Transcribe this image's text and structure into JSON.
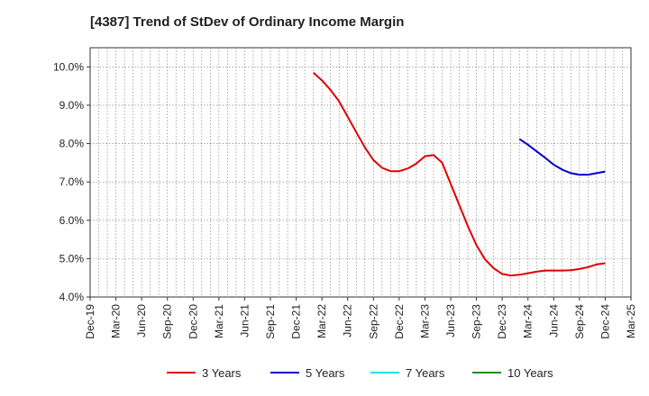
{
  "chart_data": {
    "type": "line",
    "title": "[4387]  Trend of StDev of Ordinary Income Margin",
    "x_labels": [
      "Dec-19",
      "Mar-20",
      "Jun-20",
      "Sep-20",
      "Dec-20",
      "Mar-21",
      "Jun-21",
      "Sep-21",
      "Dec-21",
      "Mar-22",
      "Jun-22",
      "Sep-22",
      "Dec-22",
      "Mar-23",
      "Jun-23",
      "Sep-23",
      "Dec-23",
      "Mar-24",
      "Jun-24",
      "Sep-24",
      "Dec-24",
      "Mar-25"
    ],
    "y_ticks": [
      "4.0%",
      "5.0%",
      "6.0%",
      "7.0%",
      "8.0%",
      "9.0%",
      "10.0%"
    ],
    "ylim": [
      4.0,
      10.5
    ],
    "grid": true,
    "legend_position": "bottom",
    "series": [
      {
        "name": "3 Years",
        "color": "#e00000",
        "points": [
          [
            "Feb-22",
            9.85
          ],
          [
            "Mar-22",
            9.65
          ],
          [
            "Apr-22",
            9.4
          ],
          [
            "May-22",
            9.1
          ],
          [
            "Jun-22",
            8.7
          ],
          [
            "Jul-22",
            8.3
          ],
          [
            "Aug-22",
            7.9
          ],
          [
            "Sep-22",
            7.57
          ],
          [
            "Oct-22",
            7.37
          ],
          [
            "Nov-22",
            7.28
          ],
          [
            "Dec-22",
            7.28
          ],
          [
            "Jan-23",
            7.35
          ],
          [
            "Feb-23",
            7.48
          ],
          [
            "Mar-23",
            7.67
          ],
          [
            "Apr-23",
            7.7
          ],
          [
            "May-23",
            7.5
          ],
          [
            "Jun-23",
            6.95
          ],
          [
            "Jul-23",
            6.4
          ],
          [
            "Aug-23",
            5.85
          ],
          [
            "Sep-23",
            5.35
          ],
          [
            "Oct-23",
            4.98
          ],
          [
            "Nov-23",
            4.75
          ],
          [
            "Dec-23",
            4.6
          ],
          [
            "Jan-24",
            4.56
          ],
          [
            "Feb-24",
            4.58
          ],
          [
            "Mar-24",
            4.62
          ],
          [
            "Apr-24",
            4.66
          ],
          [
            "May-24",
            4.69
          ],
          [
            "Jun-24",
            4.69
          ],
          [
            "Jul-24",
            4.69
          ],
          [
            "Aug-24",
            4.7
          ],
          [
            "Sep-24",
            4.73
          ],
          [
            "Oct-24",
            4.78
          ],
          [
            "Nov-24",
            4.85
          ],
          [
            "Dec-24",
            4.88
          ]
        ]
      },
      {
        "name": "5 Years",
        "color": "#0000cc",
        "points": [
          [
            "Feb-24",
            8.12
          ],
          [
            "Mar-24",
            7.97
          ],
          [
            "Apr-24",
            7.8
          ],
          [
            "May-24",
            7.63
          ],
          [
            "Jun-24",
            7.45
          ],
          [
            "Jul-24",
            7.32
          ],
          [
            "Aug-24",
            7.23
          ],
          [
            "Sep-24",
            7.19
          ],
          [
            "Oct-24",
            7.19
          ],
          [
            "Nov-24",
            7.23
          ],
          [
            "Dec-24",
            7.27
          ]
        ]
      },
      {
        "name": "7 Years",
        "color": "#00e5ee",
        "points": []
      },
      {
        "name": "10 Years",
        "color": "#228b22",
        "points": []
      }
    ]
  }
}
